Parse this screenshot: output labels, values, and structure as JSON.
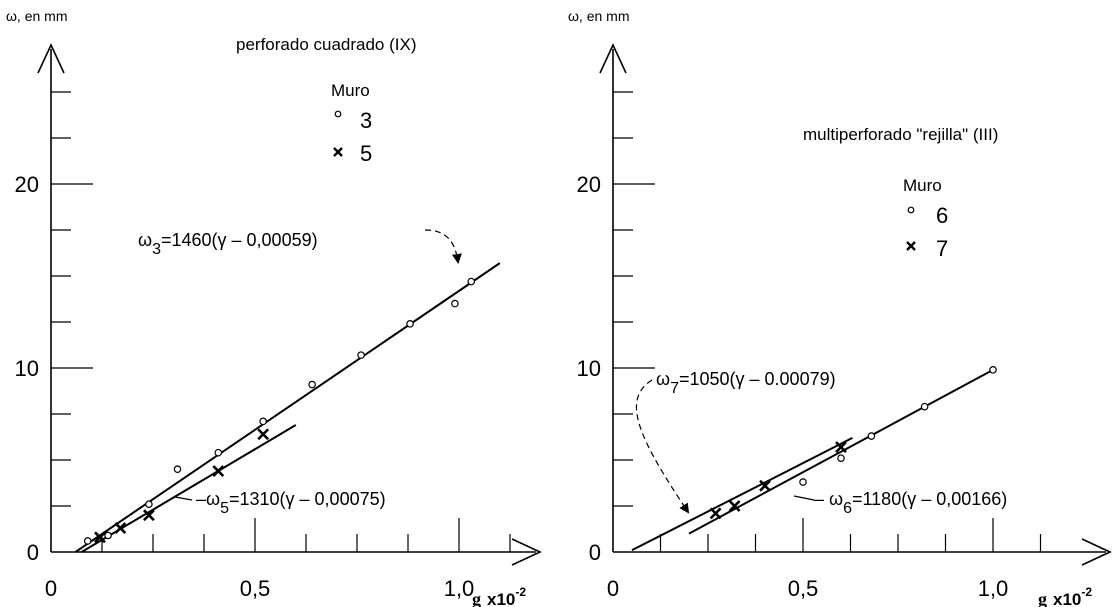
{
  "chart_data": [
    {
      "type": "scatter",
      "title": "perforado cuadrado (IX)",
      "ylabel": "ω, en mm",
      "xlabel": "g",
      "xunit": "x10",
      "xunit_exp": "-2",
      "xlim": [
        0,
        1.2
      ],
      "ylim": [
        0,
        27
      ],
      "xticks": [
        "0",
        "0,5",
        "1,0"
      ],
      "yticks": [
        "0",
        "10",
        "20"
      ],
      "legend_title": "Muro",
      "series": [
        {
          "name": "3",
          "marker": "circle",
          "points": [
            [
              0.09,
              0.6
            ],
            [
              0.14,
              0.9
            ],
            [
              0.24,
              2.6
            ],
            [
              0.31,
              4.5
            ],
            [
              0.41,
              5.4
            ],
            [
              0.52,
              7.1
            ],
            [
              0.64,
              9.1
            ],
            [
              0.76,
              10.7
            ],
            [
              0.88,
              12.4
            ],
            [
              0.99,
              13.5
            ],
            [
              1.03,
              14.7
            ]
          ],
          "fit": {
            "label_main": "ω",
            "label_sub": "3",
            "label_rest": "=1460(γ – 0,00059)",
            "x": [
              0.06,
              1.1
            ],
            "y": [
              0,
              15.7
            ]
          }
        },
        {
          "name": "5",
          "marker": "x",
          "points": [
            [
              0.12,
              0.8
            ],
            [
              0.17,
              1.3
            ],
            [
              0.24,
              2.0
            ],
            [
              0.41,
              4.4
            ],
            [
              0.52,
              6.4
            ]
          ],
          "fit": {
            "label_main": "–ω",
            "label_sub": "5",
            "label_rest": "=1310(γ – 0,00075)",
            "x": [
              0.075,
              0.6
            ],
            "y": [
              0,
              6.9
            ]
          }
        }
      ]
    },
    {
      "type": "scatter",
      "title": "multiperforado \"rejilla\" (III)",
      "ylabel": "ω, en mm",
      "xlabel": "g",
      "xunit": "x10",
      "xunit_exp": "-2",
      "xlim": [
        0,
        1.2
      ],
      "ylim": [
        0,
        27
      ],
      "xticks": [
        "0",
        "0,5",
        "1,0"
      ],
      "yticks": [
        "0",
        "10",
        "20"
      ],
      "legend_title": "Muro",
      "series": [
        {
          "name": "6",
          "marker": "circle",
          "points": [
            [
              0.5,
              3.8
            ],
            [
              0.6,
              5.1
            ],
            [
              0.68,
              6.3
            ],
            [
              0.82,
              7.9
            ],
            [
              1.0,
              9.9
            ]
          ],
          "fit": {
            "label_main": "– ω",
            "label_sub": "6",
            "label_rest": "=1180(γ – 0,00166)",
            "x": [
              0.2,
              1.0
            ],
            "y": [
              1.0,
              9.9
            ]
          }
        },
        {
          "name": "7",
          "marker": "x",
          "points": [
            [
              0.27,
              2.1
            ],
            [
              0.32,
              2.5
            ],
            [
              0.4,
              3.6
            ],
            [
              0.6,
              5.7
            ]
          ],
          "fit": {
            "label_main": "ω",
            "label_sub": "7",
            "label_rest": "=1050(γ – 0.00079)",
            "x": [
              0.05,
              0.63
            ],
            "y": [
              0.1,
              6.2
            ]
          }
        }
      ]
    }
  ]
}
